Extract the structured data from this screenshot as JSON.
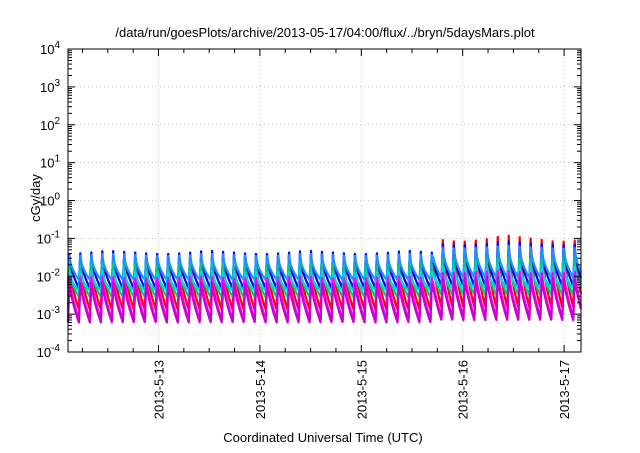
{
  "chart_data": {
    "type": "line",
    "title": "/data/run/goesPlots/archive/2013-05-17/04:00/flux/../bryn/5daysMars.plot",
    "xlabel": "Coordinated Universal Time (UTC)",
    "ylabel": "cGy/day",
    "yscale": "log",
    "ylim_exponents": [
      -4,
      4
    ],
    "y_ticks": [
      {
        "base": "10",
        "exp": "-4"
      },
      {
        "base": "10",
        "exp": "-3"
      },
      {
        "base": "10",
        "exp": "-2"
      },
      {
        "base": "10",
        "exp": "-1"
      },
      {
        "base": "10",
        "exp": "0"
      },
      {
        "base": "10",
        "exp": "1"
      },
      {
        "base": "10",
        "exp": "2"
      },
      {
        "base": "10",
        "exp": "3"
      },
      {
        "base": "10",
        "exp": "4"
      }
    ],
    "x_range": [
      "2013-05-12T02:35",
      "2013-05-17T04:00"
    ],
    "x_ticks": [
      "2013-5-13",
      "2013-5-14",
      "2013-5-15",
      "2013-5-16",
      "2013-5-17"
    ],
    "grid": true,
    "legend": "none",
    "oscillation_period_hours": 2.6,
    "series": [
      {
        "color": "#ff0000",
        "peak_before": 0.042,
        "peak_after": 0.125,
        "trough": 0.0013,
        "decay": "fast"
      },
      {
        "color": "#0000ff",
        "peak_before": 0.048,
        "peak_after": 0.085,
        "trough": 0.0048,
        "decay": "fast"
      },
      {
        "color": "#1e90ff",
        "peak_before": 0.04,
        "peak_after": 0.065,
        "trough": 0.008,
        "decay": "fast"
      },
      {
        "color": "#00cc88",
        "peak_before": 0.022,
        "peak_after": 0.032,
        "trough": 0.0028,
        "decay": "fast"
      },
      {
        "color": "#00d8d8",
        "peak_before": 0.014,
        "peak_after": 0.02,
        "trough": 0.0042,
        "decay": "fast"
      },
      {
        "color": "#ff00ff",
        "peak_before": 0.01,
        "peak_after": 0.014,
        "trough": 0.0007,
        "decay": "slow"
      },
      {
        "color": "#cc00cc",
        "peak_before": 0.007,
        "peak_after": 0.01,
        "trough": 0.0006,
        "decay": "slow"
      }
    ]
  }
}
